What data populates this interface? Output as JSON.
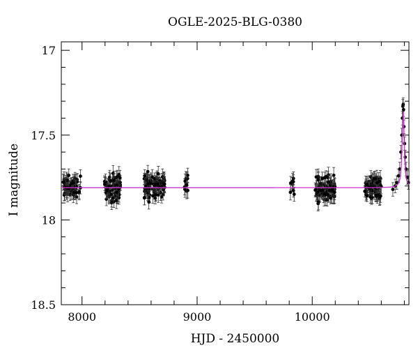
{
  "chart_data": {
    "type": "scatter",
    "title": "OGLE-2025-BLG-0380",
    "xlabel": "HJD - 2450000",
    "ylabel": "I magnitude",
    "xlim": [
      7820,
      10840
    ],
    "ylim": [
      18.5,
      16.95
    ],
    "y_inverted": true,
    "x_ticks": [
      8000,
      9000,
      10000
    ],
    "y_ticks": [
      17,
      17.5,
      18,
      18.5
    ],
    "y_tick_labels": [
      "17",
      "17.5",
      "18",
      "18.5"
    ],
    "grid": false,
    "legend": "none",
    "colors": {
      "points": "#000000",
      "model": "#cc33cc"
    },
    "baseline_mag": 17.81,
    "series": [
      {
        "kind": "observations",
        "clusters": [
          {
            "x_start": 7830,
            "x_end": 7990,
            "count": 70,
            "mean": 17.81,
            "scatter": 0.03,
            "error": 0.04
          },
          {
            "x_start": 8195,
            "x_end": 8335,
            "count": 70,
            "mean": 17.81,
            "scatter": 0.035,
            "error": 0.04
          },
          {
            "x_start": 8540,
            "x_end": 8720,
            "count": 90,
            "mean": 17.8,
            "scatter": 0.035,
            "error": 0.04
          },
          {
            "x_start": 8890,
            "x_end": 8920,
            "count": 10,
            "mean": 17.8,
            "scatter": 0.03,
            "error": 0.04
          },
          {
            "x_start": 9810,
            "x_end": 9850,
            "count": 8,
            "mean": 17.8,
            "scatter": 0.04,
            "error": 0.04
          },
          {
            "x_start": 10020,
            "x_end": 10200,
            "count": 80,
            "mean": 17.81,
            "scatter": 0.035,
            "error": 0.04
          },
          {
            "x_start": 10450,
            "x_end": 10600,
            "count": 70,
            "mean": 17.81,
            "scatter": 0.035,
            "error": 0.04
          }
        ],
        "event_points": [
          [
            10700,
            17.82
          ],
          [
            10720,
            17.8
          ],
          [
            10735,
            17.78
          ],
          [
            10750,
            17.74
          ],
          [
            10760,
            17.7
          ],
          [
            10770,
            17.6
          ],
          [
            10778,
            17.5
          ],
          [
            10783,
            17.4
          ],
          [
            10787,
            17.33
          ],
          [
            10790,
            17.32
          ],
          [
            10793,
            17.35
          ],
          [
            10797,
            17.45
          ],
          [
            10802,
            17.55
          ],
          [
            10808,
            17.63
          ],
          [
            10815,
            17.7
          ],
          [
            10825,
            17.75
          ],
          [
            10835,
            17.78
          ]
        ]
      },
      {
        "kind": "model",
        "t0": 10790,
        "peak_mag": 17.35,
        "baseline_mag": 17.81,
        "tE": 35
      }
    ]
  }
}
